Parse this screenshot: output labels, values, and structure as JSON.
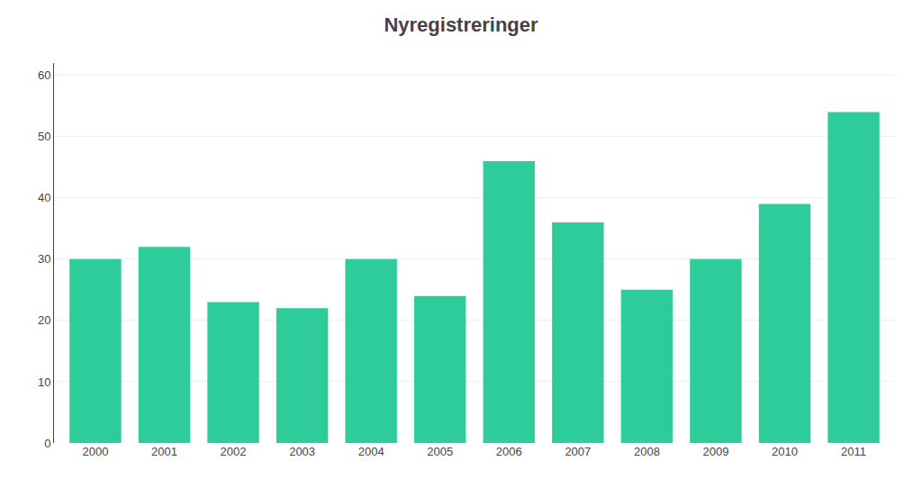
{
  "chart_data": {
    "type": "bar",
    "title": "Nyregistreringer",
    "categories": [
      "2000",
      "2001",
      "2002",
      "2003",
      "2004",
      "2005",
      "2006",
      "2007",
      "2008",
      "2009",
      "2010",
      "2011"
    ],
    "values": [
      30,
      32,
      23,
      22,
      30,
      24,
      46,
      36,
      25,
      30,
      39,
      54
    ],
    "color": "#2ECC9A",
    "ylim": [
      0,
      62
    ],
    "yticks": [
      0,
      10,
      20,
      30,
      40,
      50,
      60
    ],
    "grid": true
  }
}
